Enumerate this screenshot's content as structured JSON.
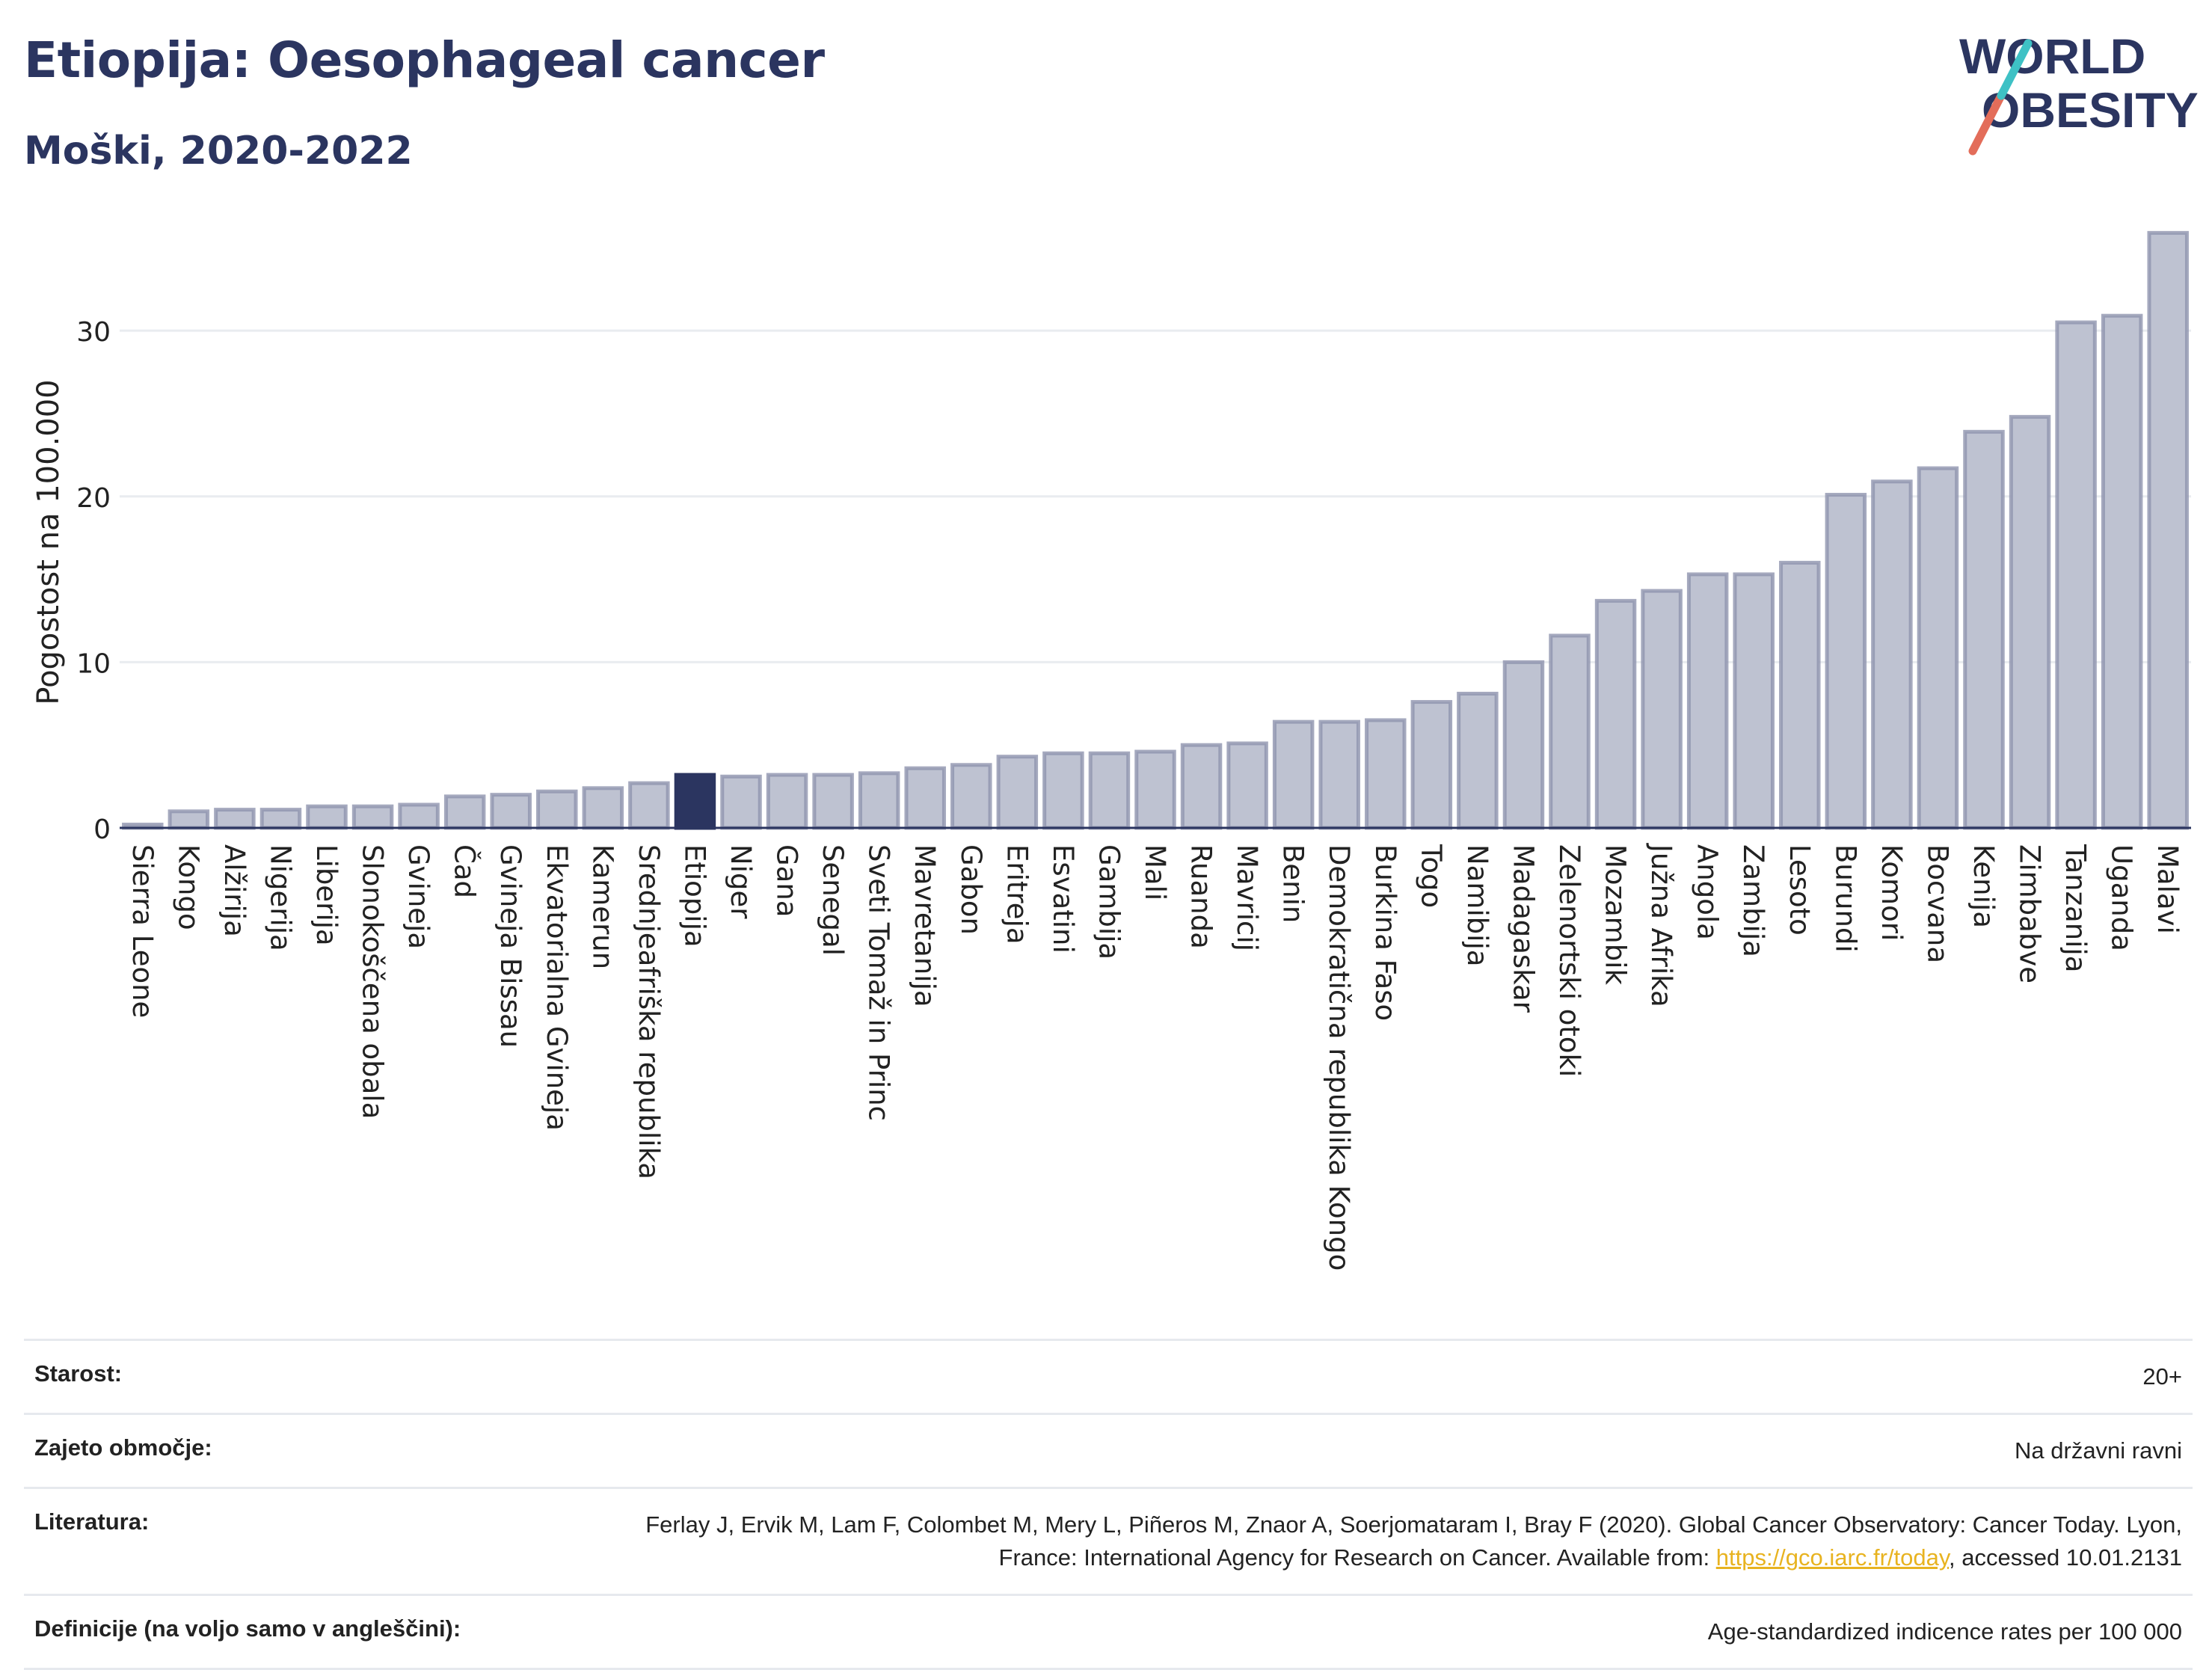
{
  "header": {
    "title": "Etiopija: Oesophageal cancer",
    "subtitle": "Moški, 2020-2022"
  },
  "logo": {
    "line1": "WORLD",
    "line2": "OBESITY"
  },
  "colors": {
    "bar": "#bec2d1",
    "bar_stroke": "#8e94ae",
    "highlight": "#2b3560",
    "title": "#2b3560",
    "grid": "#e9ecf0"
  },
  "chart_data": {
    "type": "bar",
    "ylabel": "Pogostost na 100.000",
    "xlabel": "",
    "ylim": [
      0,
      37
    ],
    "yticks": [
      0,
      10,
      20,
      30
    ],
    "grid": true,
    "highlight": "Etiopija",
    "categories": [
      "Sierra Leone",
      "Kongo",
      "Alžirija",
      "Nigerija",
      "Liberija",
      "Slonokoščena obala",
      "Gvineja",
      "Čad",
      "Gvineja Bissau",
      "Ekvatorialna Gvineja",
      "Kamerun",
      "Srednjeafriška republika",
      "Etiopija",
      "Niger",
      "Gana",
      "Senegal",
      "Sveti Tomaž in Princ",
      "Mavretanija",
      "Gabon",
      "Eritreja",
      "Esvatini",
      "Gambija",
      "Mali",
      "Ruanda",
      "Mavricij",
      "Benin",
      "Demokratična republika Kongo",
      "Burkina Faso",
      "Togo",
      "Namibija",
      "Madagaskar",
      "Zelenortski otoki",
      "Mozambik",
      "Južna Afrika",
      "Angola",
      "Zambija",
      "Lesoto",
      "Burundi",
      "Komori",
      "Bocvana",
      "Kenija",
      "Zimbabve",
      "Tanzanija",
      "Uganda",
      "Malavi"
    ],
    "values": [
      0.2,
      1.0,
      1.1,
      1.1,
      1.3,
      1.3,
      1.4,
      1.9,
      2.0,
      2.2,
      2.4,
      2.7,
      3.2,
      3.1,
      3.2,
      3.2,
      3.3,
      3.6,
      3.8,
      4.3,
      4.5,
      4.5,
      4.6,
      5.0,
      5.1,
      6.4,
      6.4,
      6.5,
      7.6,
      8.1,
      10.0,
      11.6,
      13.7,
      14.3,
      15.3,
      15.3,
      16.0,
      20.1,
      20.9,
      21.7,
      23.9,
      24.8,
      30.5,
      30.9,
      35.9
    ]
  },
  "meta": {
    "age_label": "Starost:",
    "age_value": "20+",
    "area_label": "Zajeto območje:",
    "area_value": "Na državni ravni",
    "lit_label": "Literatura:",
    "lit_text1": "Ferlay J, Ervik M, Lam F, Colombet M, Mery L, Piñeros M, Znaor A, Soerjomataram I, Bray F (2020). Global Cancer Observatory: Cancer Today. Lyon, France: International Agency for Research on Cancer. Available from: ",
    "lit_link": "https://gco.iarc.fr/today",
    "lit_text2": ", accessed 10.01.2131",
    "def_label": "Definicije (na voljo samo v angleščini):",
    "def_value": "Age-standardized indicence rates per 100 000"
  }
}
